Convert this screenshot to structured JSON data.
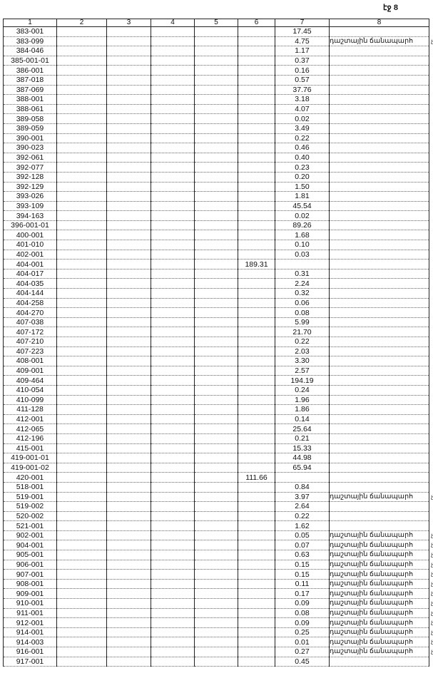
{
  "page_label": "էջ 8",
  "columns": [
    "1",
    "2",
    "3",
    "4",
    "5",
    "6",
    "7",
    "8"
  ],
  "note_text": "դաշտային ճանապարհ",
  "note_suffix": "չմ",
  "rows": [
    {
      "c1": "383-001",
      "c6": "",
      "c7": "17.45",
      "c8": ""
    },
    {
      "c1": "383-099",
      "c6": "",
      "c7": "4.75",
      "c8": "դաշտային ճանապարհ"
    },
    {
      "c1": "384-046",
      "c6": "",
      "c7": "1.17",
      "c8": ""
    },
    {
      "c1": "385-001-01",
      "c6": "",
      "c7": "0.37",
      "c8": ""
    },
    {
      "c1": "386-001",
      "c6": "",
      "c7": "0.16",
      "c8": ""
    },
    {
      "c1": "387-018",
      "c6": "",
      "c7": "0.57",
      "c8": ""
    },
    {
      "c1": "387-069",
      "c6": "",
      "c7": "37.76",
      "c8": ""
    },
    {
      "c1": "388-001",
      "c6": "",
      "c7": "3.18",
      "c8": ""
    },
    {
      "c1": "388-061",
      "c6": "",
      "c7": "4.07",
      "c8": ""
    },
    {
      "c1": "389-058",
      "c6": "",
      "c7": "0.02",
      "c8": ""
    },
    {
      "c1": "389-059",
      "c6": "",
      "c7": "3.49",
      "c8": ""
    },
    {
      "c1": "390-001",
      "c6": "",
      "c7": "0.22",
      "c8": ""
    },
    {
      "c1": "390-023",
      "c6": "",
      "c7": "0.46",
      "c8": ""
    },
    {
      "c1": "392-061",
      "c6": "",
      "c7": "0.40",
      "c8": ""
    },
    {
      "c1": "392-077",
      "c6": "",
      "c7": "0.23",
      "c8": ""
    },
    {
      "c1": "392-128",
      "c6": "",
      "c7": "0.20",
      "c8": ""
    },
    {
      "c1": "392-129",
      "c6": "",
      "c7": "1.50",
      "c8": ""
    },
    {
      "c1": "393-026",
      "c6": "",
      "c7": "1.81",
      "c8": ""
    },
    {
      "c1": "393-109",
      "c6": "",
      "c7": "45.54",
      "c8": ""
    },
    {
      "c1": "394-163",
      "c6": "",
      "c7": "0.02",
      "c8": ""
    },
    {
      "c1": "396-001-01",
      "c6": "",
      "c7": "89.26",
      "c8": ""
    },
    {
      "c1": "400-001",
      "c6": "",
      "c7": "1.68",
      "c8": ""
    },
    {
      "c1": "401-010",
      "c6": "",
      "c7": "0.10",
      "c8": ""
    },
    {
      "c1": "402-001",
      "c6": "",
      "c7": "0.03",
      "c8": ""
    },
    {
      "c1": "404-001",
      "c6": "189.31",
      "c7": "",
      "c8": ""
    },
    {
      "c1": "404-017",
      "c6": "",
      "c7": "0.31",
      "c8": ""
    },
    {
      "c1": "404-035",
      "c6": "",
      "c7": "2.24",
      "c8": ""
    },
    {
      "c1": "404-144",
      "c6": "",
      "c7": "0.32",
      "c8": ""
    },
    {
      "c1": "404-258",
      "c6": "",
      "c7": "0.06",
      "c8": ""
    },
    {
      "c1": "404-270",
      "c6": "",
      "c7": "0.08",
      "c8": ""
    },
    {
      "c1": "407-038",
      "c6": "",
      "c7": "5.99",
      "c8": ""
    },
    {
      "c1": "407-172",
      "c6": "",
      "c7": "21.70",
      "c8": ""
    },
    {
      "c1": "407-210",
      "c6": "",
      "c7": "0.22",
      "c8": ""
    },
    {
      "c1": "407-223",
      "c6": "",
      "c7": "2.03",
      "c8": ""
    },
    {
      "c1": "408-001",
      "c6": "",
      "c7": "3.30",
      "c8": ""
    },
    {
      "c1": "409-001",
      "c6": "",
      "c7": "2.57",
      "c8": ""
    },
    {
      "c1": "409-464",
      "c6": "",
      "c7": "194.19",
      "c8": ""
    },
    {
      "c1": "410-054",
      "c6": "",
      "c7": "0.24",
      "c8": ""
    },
    {
      "c1": "410-099",
      "c6": "",
      "c7": "1.96",
      "c8": ""
    },
    {
      "c1": "411-128",
      "c6": "",
      "c7": "1.86",
      "c8": ""
    },
    {
      "c1": "412-001",
      "c6": "",
      "c7": "0.14",
      "c8": ""
    },
    {
      "c1": "412-065",
      "c6": "",
      "c7": "25.64",
      "c8": ""
    },
    {
      "c1": "412-196",
      "c6": "",
      "c7": "0.21",
      "c8": ""
    },
    {
      "c1": "415-001",
      "c6": "",
      "c7": "15.33",
      "c8": ""
    },
    {
      "c1": "419-001-01",
      "c6": "",
      "c7": "44.98",
      "c8": ""
    },
    {
      "c1": "419-001-02",
      "c6": "",
      "c7": "65.94",
      "c8": ""
    },
    {
      "c1": "420-001",
      "c6": "111.66",
      "c7": "",
      "c8": ""
    },
    {
      "c1": "518-001",
      "c6": "",
      "c7": "0.84",
      "c8": ""
    },
    {
      "c1": "519-001",
      "c6": "",
      "c7": "3.97",
      "c8": "դաշտային ճանապարհ"
    },
    {
      "c1": "519-002",
      "c6": "",
      "c7": "2.64",
      "c8": ""
    },
    {
      "c1": "520-002",
      "c6": "",
      "c7": "0.22",
      "c8": ""
    },
    {
      "c1": "521-001",
      "c6": "",
      "c7": "1.62",
      "c8": ""
    },
    {
      "c1": "902-001",
      "c6": "",
      "c7": "0.05",
      "c8": "դաշտային ճանապարհ"
    },
    {
      "c1": "904-001",
      "c6": "",
      "c7": "0.07",
      "c8": "դաշտային ճանապարհ"
    },
    {
      "c1": "905-001",
      "c6": "",
      "c7": "0.63",
      "c8": "դաշտային ճանապարհ"
    },
    {
      "c1": "906-001",
      "c6": "",
      "c7": "0.15",
      "c8": "դաշտային ճանապարհ"
    },
    {
      "c1": "907-001",
      "c6": "",
      "c7": "0.15",
      "c8": "դաշտային ճանապարհ"
    },
    {
      "c1": "908-001",
      "c6": "",
      "c7": "0.11",
      "c8": "դաշտային ճանապարհ"
    },
    {
      "c1": "909-001",
      "c6": "",
      "c7": "0.17",
      "c8": "դաշտային ճանապարհ"
    },
    {
      "c1": "910-001",
      "c6": "",
      "c7": "0.09",
      "c8": "դաշտային ճանապարհ"
    },
    {
      "c1": "911-001",
      "c6": "",
      "c7": "0.08",
      "c8": "դաշտային ճանապարհ"
    },
    {
      "c1": "912-001",
      "c6": "",
      "c7": "0.09",
      "c8": "դաշտային ճանապարհ"
    },
    {
      "c1": "914-001",
      "c6": "",
      "c7": "0.25",
      "c8": "դաշտային ճանապարհ"
    },
    {
      "c1": "914-003",
      "c6": "",
      "c7": "0.01",
      "c8": "դաշտային ճանապարհ"
    },
    {
      "c1": "916-001",
      "c6": "",
      "c7": "0.27",
      "c8": "դաշտային ճանապարհ"
    },
    {
      "c1": "917-001",
      "c6": "",
      "c7": "0.45",
      "c8": ""
    }
  ]
}
